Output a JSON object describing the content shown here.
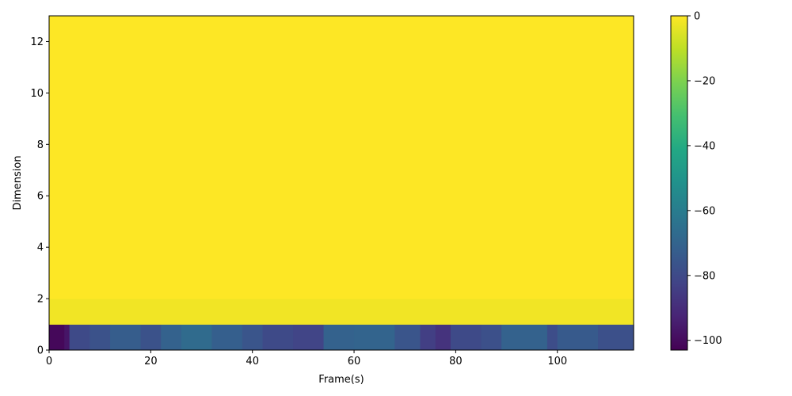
{
  "chart_data": {
    "type": "heatmap",
    "title": "",
    "xlabel": "Frame(s)",
    "ylabel": "Dimension",
    "xlim": [
      0,
      115
    ],
    "ylim": [
      0,
      13
    ],
    "x_ticks": [
      0,
      20,
      40,
      60,
      80,
      100
    ],
    "y_ticks": [
      0,
      2,
      4,
      6,
      8,
      10,
      12
    ],
    "colormap": "viridis",
    "colorbar": {
      "vmin": -103,
      "vmax": 0,
      "ticks": [
        0,
        -20,
        -40,
        -60,
        -80,
        -100
      ],
      "tick_labels": [
        "0",
        "−20",
        "−40",
        "−60",
        "−80",
        "−100"
      ]
    },
    "rows": [
      {
        "dimension_range": [
          0,
          1
        ],
        "segments": [
          {
            "x": [
              0,
              3
            ],
            "value": -101
          },
          {
            "x": [
              3,
              4
            ],
            "value": -97
          },
          {
            "x": [
              4,
              8
            ],
            "value": -80
          },
          {
            "x": [
              8,
              12
            ],
            "value": -77
          },
          {
            "x": [
              12,
              18
            ],
            "value": -73
          },
          {
            "x": [
              18,
              22
            ],
            "value": -77
          },
          {
            "x": [
              22,
              26
            ],
            "value": -71
          },
          {
            "x": [
              26,
              32
            ],
            "value": -67
          },
          {
            "x": [
              32,
              38
            ],
            "value": -72
          },
          {
            "x": [
              38,
              42
            ],
            "value": -76
          },
          {
            "x": [
              42,
              48
            ],
            "value": -80
          },
          {
            "x": [
              48,
              54
            ],
            "value": -82
          },
          {
            "x": [
              54,
              60
            ],
            "value": -71
          },
          {
            "x": [
              60,
              68
            ],
            "value": -70
          },
          {
            "x": [
              68,
              73
            ],
            "value": -76
          },
          {
            "x": [
              73,
              76
            ],
            "value": -84
          },
          {
            "x": [
              76,
              79
            ],
            "value": -88
          },
          {
            "x": [
              79,
              85
            ],
            "value": -80
          },
          {
            "x": [
              85,
              89
            ],
            "value": -78
          },
          {
            "x": [
              89,
              98
            ],
            "value": -71
          },
          {
            "x": [
              98,
              100
            ],
            "value": -79
          },
          {
            "x": [
              100,
              108
            ],
            "value": -74
          },
          {
            "x": [
              108,
              115
            ],
            "value": -78
          }
        ]
      },
      {
        "dimension_range": [
          1,
          2
        ],
        "segments": [
          {
            "x": [
              0,
              115
            ],
            "value": -2
          }
        ]
      },
      {
        "dimension_range": [
          2,
          13
        ],
        "segments": [
          {
            "x": [
              0,
              115
            ],
            "value": 0
          }
        ]
      }
    ]
  }
}
